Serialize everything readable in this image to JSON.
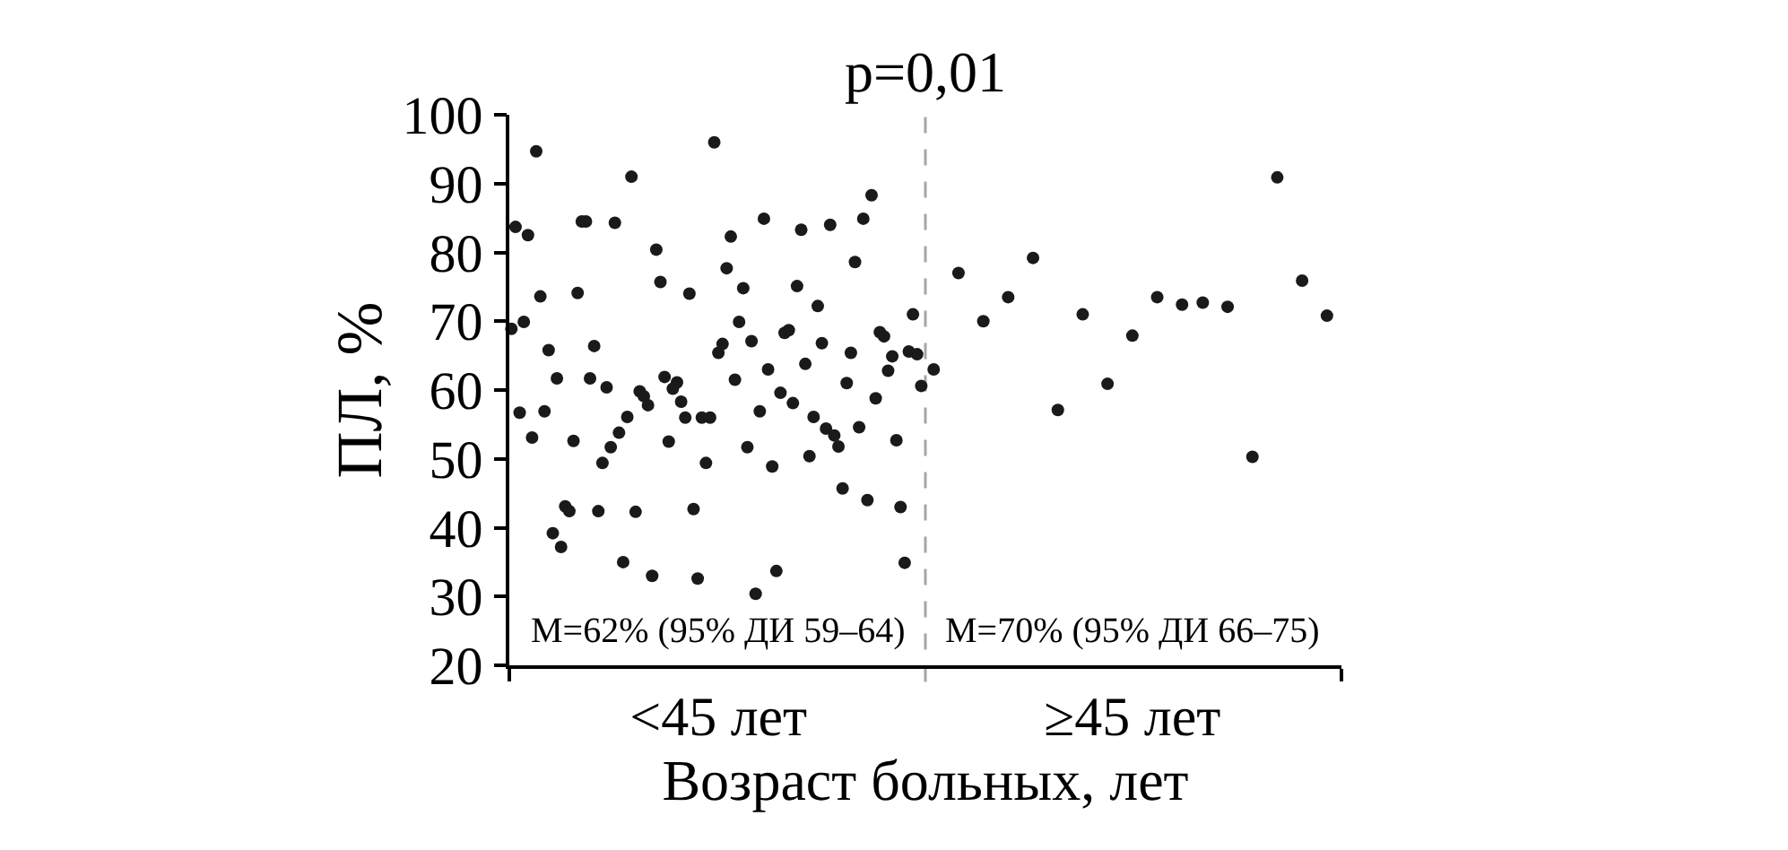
{
  "chart_data": {
    "type": "scatter",
    "title": "p=0,01",
    "xlabel": "Возраст больных, лет",
    "ylabel": "ПЛ, %",
    "categories": [
      null,
      null,
      null,
      null,
      null,
      null,
      null,
      null,
      null,
      null,
      null,
      null,
      null,
      null,
      null,
      null,
      null,
      null,
      null,
      null,
      null,
      null,
      null,
      null,
      null,
      null,
      null,
      null,
      null,
      null,
      null,
      null,
      null,
      null,
      null,
      null,
      null,
      null,
      null,
      null,
      null,
      null,
      null,
      null,
      null,
      null,
      null,
      null,
      null,
      null,
      "<45 лет",
      null,
      null,
      null,
      null,
      null,
      null,
      null,
      null,
      null,
      null,
      null,
      null,
      null,
      null,
      null,
      null,
      null,
      null,
      null,
      null,
      null,
      null,
      null,
      null,
      null,
      null,
      null,
      null,
      null,
      null,
      null,
      null,
      null,
      null,
      null,
      null,
      null,
      null,
      null,
      null,
      null,
      null,
      null,
      null,
      null,
      null,
      null,
      null,
      null,
      null,
      null,
      null,
      null,
      null,
      null,
      null,
      null,
      null,
      null,
      null,
      null,
      null,
      null,
      null,
      null,
      null,
      null,
      null,
      null,
      null,
      null,
      null,
      null,
      null,
      null,
      null,
      null,
      null,
      null,
      null,
      null,
      null,
      null,
      null,
      null,
      null,
      null,
      null,
      null,
      null,
      null,
      null,
      null,
      null,
      null,
      null,
      null,
      null,
      null,
      "≥45 лет",
      null,
      null,
      null,
      null,
      null,
      null,
      null,
      null,
      null,
      null,
      null,
      null,
      null,
      null,
      null,
      null,
      null,
      null,
      null,
      null,
      null,
      null,
      null,
      null,
      null,
      null,
      null,
      null,
      null,
      null,
      null,
      null,
      null,
      null,
      null,
      null,
      null,
      null,
      null,
      null,
      null,
      null,
      null,
      null,
      null,
      null,
      null,
      null,
      null,
      null
    ],
    "ylim": [
      20,
      100
    ],
    "yticks": [
      20,
      30,
      40,
      50,
      60,
      70,
      80,
      90,
      100
    ],
    "series": [
      {
        "color": "#1a1a1a",
        "values": [
          68.9,
          83.7,
          56.7,
          69.9,
          82.5,
          53.1,
          94.7,
          73.6,
          56.9,
          65.8,
          39.2,
          61.7,
          37.2,
          43.1,
          42.4,
          52.6,
          74.1,
          84.5,
          84.5,
          61.7,
          66.4,
          42.4,
          49.4,
          60.4,
          51.7,
          84.3,
          53.8,
          35.0,
          56.1,
          91.0,
          42.3,
          59.8,
          59.1,
          57.8,
          33.0,
          80.4,
          75.7,
          61.9,
          52.5,
          60.2,
          61.1,
          58.3,
          56.0,
          74.0,
          42.7,
          32.6,
          56.0,
          49.4,
          56.0,
          96.0,
          65.4,
          66.7,
          77.7,
          82.3,
          61.5,
          69.9,
          74.8,
          51.7,
          67.1,
          30.4,
          56.9,
          84.9,
          63.0,
          48.9,
          33.7,
          59.6,
          68.3,
          68.7,
          58.1,
          75.1,
          83.3,
          63.8,
          50.4,
          56.1,
          72.2,
          66.8,
          54.4,
          84.0,
          53.4,
          51.8,
          45.7,
          61.0,
          65.4,
          78.6,
          54.6,
          84.9,
          44.0,
          88.3,
          58.8,
          68.4,
          67.8,
          62.8,
          64.9,
          52.7,
          43.0,
          34.9,
          65.6,
          71.0,
          65.2,
          60.6,
          null,
          null,
          63.0,
          null,
          null,
          null,
          null,
          null,
          77.0,
          null,
          null,
          null,
          null,
          null,
          70.0,
          null,
          null,
          null,
          null,
          null,
          73.5,
          null,
          null,
          null,
          null,
          null,
          79.2,
          null,
          null,
          null,
          null,
          null,
          57.1,
          null,
          null,
          null,
          null,
          null,
          71.0,
          null,
          null,
          null,
          null,
          null,
          60.9,
          null,
          null,
          null,
          null,
          null,
          67.9,
          null,
          null,
          null,
          null,
          null,
          73.5,
          null,
          null,
          null,
          null,
          null,
          72.4,
          null,
          null,
          null,
          null,
          72.7,
          null,
          null,
          null,
          null,
          null,
          72.1,
          null,
          null,
          null,
          null,
          null,
          50.3,
          null,
          null,
          null,
          null,
          null,
          90.9,
          null,
          null,
          null,
          null,
          null,
          75.9,
          null,
          null,
          null,
          null,
          null,
          70.8,
          null,
          null,
          null
        ]
      }
    ],
    "marker": "circle",
    "annotations": [
      "M=62% (95% ДИ 59–64)",
      "M=70% (95% ДИ 66–75)"
    ]
  }
}
